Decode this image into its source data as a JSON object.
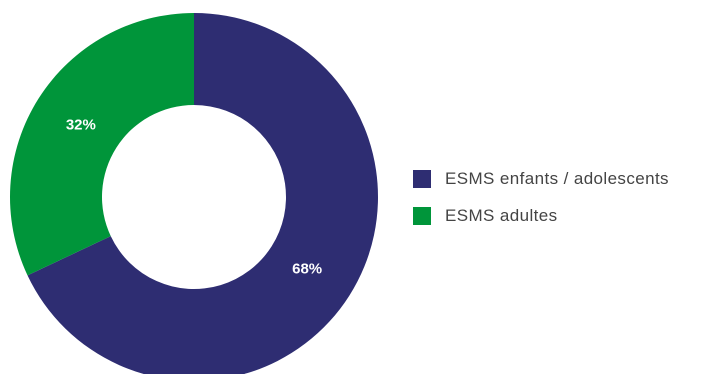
{
  "chart_data": {
    "type": "pie",
    "variant": "donut",
    "series": [
      {
        "name": "ESMS enfants / adolescents",
        "value": 68,
        "value_label": "68%",
        "color": "#2e2d72"
      },
      {
        "name": "ESMS adultes",
        "value": 32,
        "value_label": "32%",
        "color": "#00953a"
      }
    ],
    "legend_position": "right"
  }
}
